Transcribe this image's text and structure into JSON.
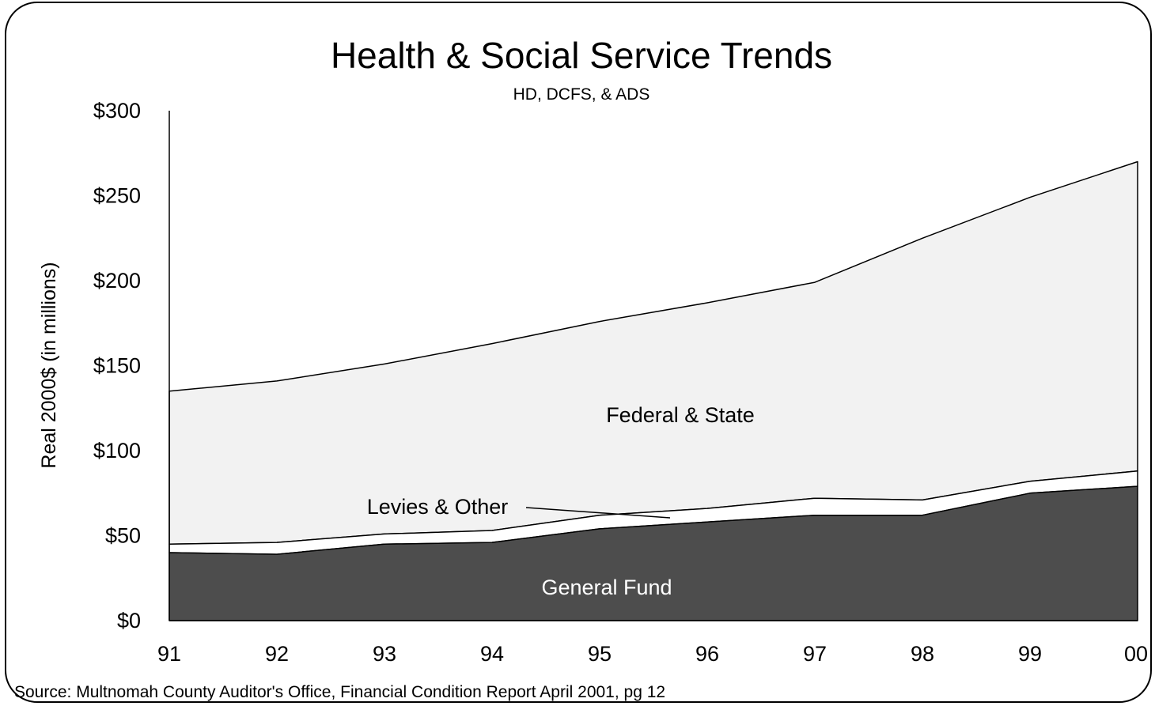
{
  "chart_data": {
    "type": "area",
    "stacked": true,
    "title": "Health & Social Service Trends",
    "subtitle": "HD, DCFS, & ADS",
    "xlabel": "",
    "ylabel": "Real 2000$ (in millions)",
    "ylim": [
      0,
      300
    ],
    "y_ticks": [
      0,
      50,
      100,
      150,
      200,
      250,
      300
    ],
    "y_tick_labels": [
      "$0",
      "$50",
      "$100",
      "$150",
      "$200",
      "$250",
      "$300"
    ],
    "categories": [
      "91",
      "92",
      "93",
      "94",
      "95",
      "96",
      "97",
      "98",
      "99",
      "00"
    ],
    "grid": false,
    "series": [
      {
        "name": "General Fund",
        "values": [
          40,
          39,
          45,
          46,
          54,
          58,
          62,
          62,
          75,
          79
        ],
        "color": "#4d4d4d"
      },
      {
        "name": "Levies & Other",
        "values": [
          5,
          7,
          6,
          7,
          8,
          8,
          10,
          9,
          7,
          9
        ],
        "color": "#ffffff"
      },
      {
        "name": "Federal & State",
        "values": [
          90,
          95,
          100,
          110,
          114,
          121,
          127,
          154,
          167,
          182
        ],
        "color": "#f2f2f2"
      }
    ],
    "annotations": {
      "source": "Source: Multnomah County Auditor's Office, Financial Condition Report April 2001, pg 12"
    }
  }
}
